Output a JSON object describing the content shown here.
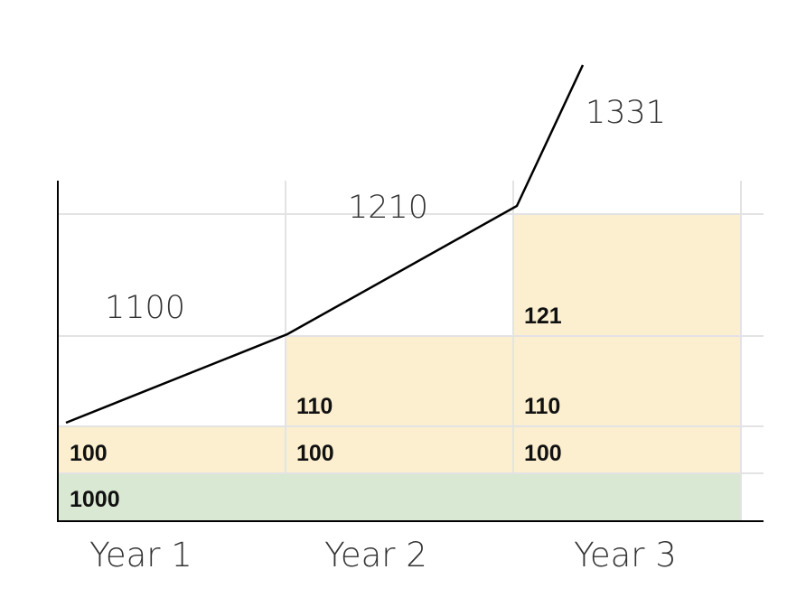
{
  "principal": {
    "label": "1000",
    "color": "#d9e8d2"
  },
  "interest_color": "#fbefd0",
  "grid_color": "#e3e3e3",
  "years": [
    {
      "label": "Year 1",
      "interest_cells": [
        "100"
      ],
      "total": "1100"
    },
    {
      "label": "Year 2",
      "interest_cells": [
        "100",
        "110"
      ],
      "total": "1210"
    },
    {
      "label": "Year 3",
      "interest_cells": [
        "100",
        "110",
        "121"
      ],
      "total": "1331"
    }
  ]
}
